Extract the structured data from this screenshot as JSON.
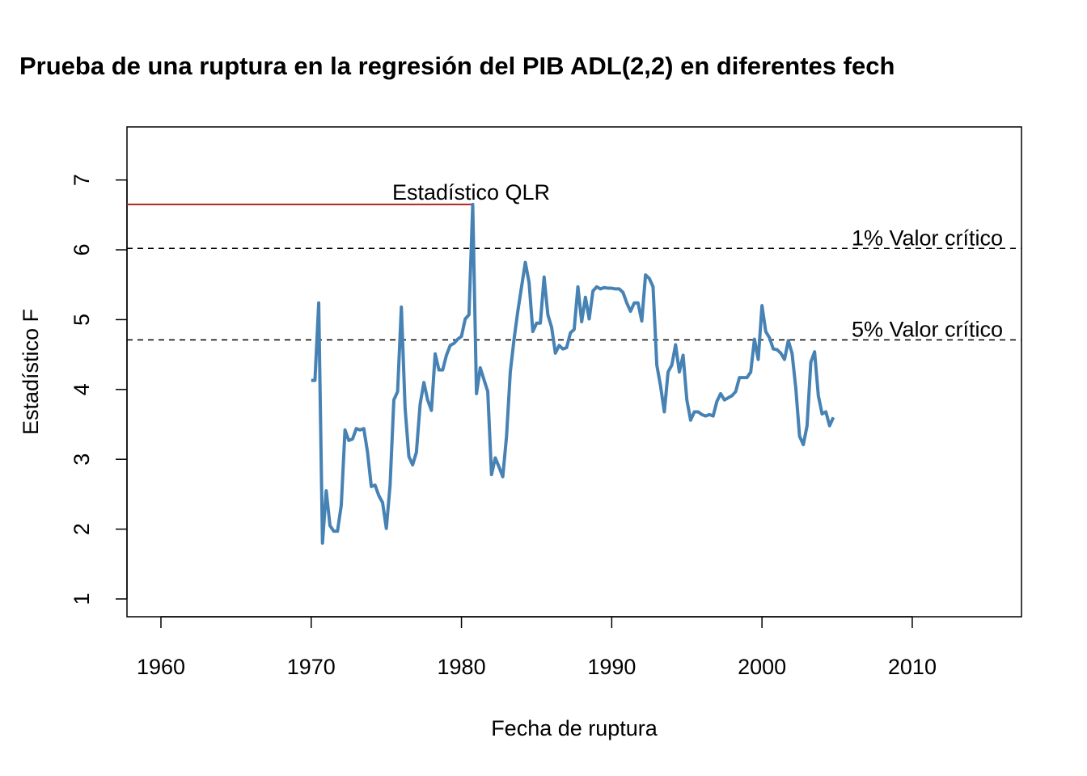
{
  "chart_data": {
    "type": "line",
    "title": "Prueba de una ruptura en la regresión del PIB ADL(2,2) en diferentes fech",
    "xlabel": "Fecha de ruptura",
    "ylabel": "Estadístico F",
    "xlim": [
      1957.74,
      2017.27
    ],
    "ylim": [
      0.745,
      7.76
    ],
    "xticks": [
      1960,
      1970,
      1980,
      1990,
      2000,
      2010
    ],
    "yticks": [
      1,
      2,
      3,
      4,
      5,
      6,
      7
    ],
    "x": [
      1970,
      1970.25,
      1970.5,
      1970.75,
      1971,
      1971.25,
      1971.5,
      1971.75,
      1972,
      1972.25,
      1972.5,
      1972.75,
      1973,
      1973.25,
      1973.5,
      1973.75,
      1974,
      1974.25,
      1974.5,
      1974.75,
      1975,
      1975.25,
      1975.5,
      1975.75,
      1976,
      1976.25,
      1976.5,
      1976.75,
      1977,
      1977.25,
      1977.5,
      1977.75,
      1978,
      1978.25,
      1978.5,
      1978.75,
      1979,
      1979.25,
      1979.5,
      1979.75,
      1980,
      1980.25,
      1980.5,
      1980.75,
      1981,
      1981.25,
      1981.5,
      1981.75,
      1982,
      1982.25,
      1982.5,
      1982.75,
      1983,
      1983.25,
      1983.5,
      1983.75,
      1984,
      1984.25,
      1984.5,
      1984.75,
      1985,
      1985.25,
      1985.5,
      1985.75,
      1986,
      1986.25,
      1986.5,
      1986.75,
      1987,
      1987.25,
      1987.5,
      1987.75,
      1988,
      1988.25,
      1988.5,
      1988.75,
      1989,
      1989.25,
      1989.5,
      1989.75,
      1990,
      1990.25,
      1990.5,
      1990.75,
      1991,
      1991.25,
      1991.5,
      1991.75,
      1992,
      1992.25,
      1992.5,
      1992.75,
      1993,
      1993.25,
      1993.5,
      1993.75,
      1994,
      1994.25,
      1994.5,
      1994.75,
      1995,
      1995.25,
      1995.5,
      1995.75,
      1996,
      1996.25,
      1996.5,
      1996.75,
      1997,
      1997.25,
      1997.5,
      1997.75,
      1998,
      1998.25,
      1998.5,
      1998.75,
      1999,
      1999.25,
      1999.5,
      1999.75,
      2000,
      2000.25,
      2000.5,
      2000.75,
      2001,
      2001.25,
      2001.5,
      2001.75,
      2002,
      2002.25,
      2002.5,
      2002.75,
      2003,
      2003.25,
      2003.5,
      2003.75,
      2004,
      2004.25,
      2004.5,
      2004.75
    ],
    "series": [
      {
        "color": "#4682b4",
        "values": [
          4.13,
          4.13,
          5.24,
          1.8,
          2.55,
          2.05,
          1.97,
          1.97,
          2.34,
          3.42,
          3.27,
          3.29,
          3.44,
          3.42,
          3.44,
          3.1,
          2.61,
          2.63,
          2.48,
          2.38,
          2.01,
          2.63,
          3.85,
          3.97,
          5.18,
          3.73,
          3.04,
          2.92,
          3.1,
          3.79,
          4.1,
          3.85,
          3.7,
          4.51,
          4.28,
          4.28,
          4.49,
          4.63,
          4.66,
          4.72,
          4.76,
          5.01,
          5.07,
          6.65,
          3.94,
          4.31,
          4.14,
          3.97,
          2.78,
          3.02,
          2.89,
          2.75,
          3.33,
          4.25,
          4.72,
          5.12,
          5.47,
          5.82,
          5.53,
          4.83,
          4.95,
          4.95,
          5.61,
          5.07,
          4.89,
          4.52,
          4.63,
          4.58,
          4.6,
          4.81,
          4.86,
          5.47,
          4.97,
          5.32,
          5.01,
          5.41,
          5.47,
          5.44,
          5.46,
          5.45,
          5.45,
          5.44,
          5.44,
          5.39,
          5.24,
          5.12,
          5.24,
          5.24,
          4.98,
          5.64,
          5.59,
          5.47,
          4.35,
          4.05,
          3.68,
          4.25,
          4.35,
          4.64,
          4.25,
          4.49,
          3.85,
          3.56,
          3.68,
          3.68,
          3.64,
          3.62,
          3.64,
          3.62,
          3.83,
          3.94,
          3.85,
          3.88,
          3.91,
          3.97,
          4.17,
          4.17,
          4.17,
          4.25,
          4.72,
          4.43,
          5.2,
          4.83,
          4.74,
          4.58,
          4.57,
          4.52,
          4.43,
          4.7,
          4.52,
          4.02,
          3.33,
          3.21,
          3.48,
          4.39,
          4.54,
          3.91,
          3.65,
          3.68,
          3.48,
          3.6
        ]
      }
    ],
    "hlines": [
      {
        "value": 6.02,
        "label": "1% Valor crítico"
      },
      {
        "value": 4.71,
        "label": "5% Valor crítico"
      }
    ],
    "qlr": {
      "label": "Estadístico QLR",
      "x": 1980.75,
      "value": 6.65,
      "color": "#b22222"
    }
  }
}
